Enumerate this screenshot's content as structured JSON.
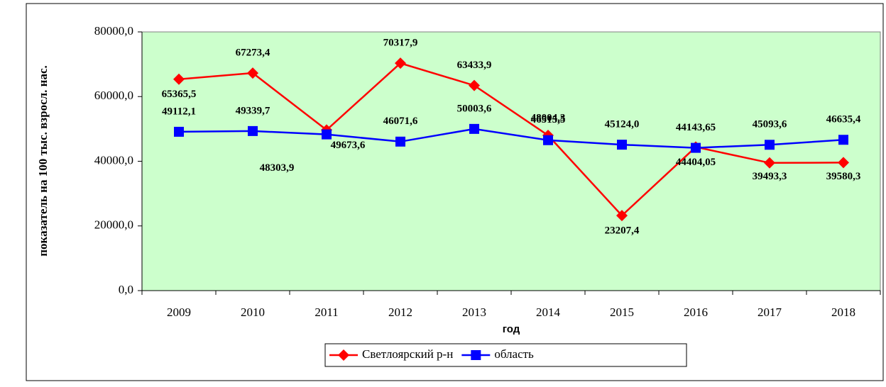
{
  "chart_data": {
    "type": "line",
    "ylabel": "показатель на 100 тыс. взросл. нас.",
    "xlabel": "год",
    "categories": [
      "2009",
      "2010",
      "2011",
      "2012",
      "2013",
      "2014",
      "2015",
      "2016",
      "2017",
      "2018"
    ],
    "series": [
      {
        "name": "Светлоярский р-н",
        "color": "#ff0000",
        "marker": "diamond",
        "values": [
          65365.5,
          67273.4,
          49673.6,
          70317.9,
          63433.9,
          48004.3,
          23207.4,
          44404.05,
          39493.3,
          39580.3
        ],
        "value_labels": [
          "65365,5",
          "67273,4",
          "49673,6",
          "70317,9",
          "63433,9",
          "48004,3",
          "23207,4",
          "44404,05",
          "39493,3",
          "39580,3"
        ]
      },
      {
        "name": "область",
        "color": "#0000ff",
        "marker": "square",
        "values": [
          49112.1,
          49339.7,
          48303.9,
          46071.6,
          50003.6,
          46515.5,
          45124.0,
          44143.65,
          45093.6,
          46635.4
        ],
        "value_labels": [
          "49112,1",
          "49339,7",
          "48303,9",
          "46071,6",
          "50003,6",
          "46515,5",
          "45124,0",
          "44143,65",
          "45093,6",
          "46635,4"
        ]
      }
    ],
    "ylim": [
      0,
      80000
    ],
    "yticks": [
      {
        "value": 0,
        "label": "0,0"
      },
      {
        "value": 20000,
        "label": "20000,0"
      },
      {
        "value": 40000,
        "label": "40000,0"
      },
      {
        "value": 60000,
        "label": "60000,0"
      },
      {
        "value": 80000,
        "label": "80000,0"
      }
    ],
    "plot_background": "#ccffcc",
    "legend": "bottom"
  }
}
